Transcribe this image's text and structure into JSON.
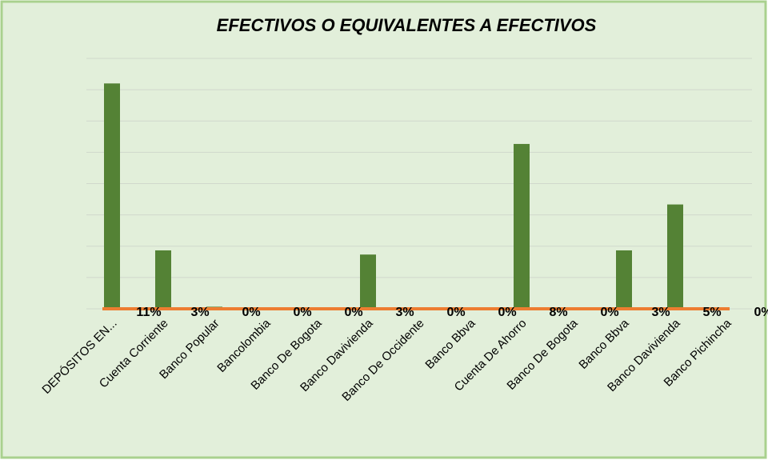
{
  "chart_data": {
    "type": "bar",
    "title": "EFECTIVOS O EQUIVALENTES A EFECTIVOS",
    "categories": [
      "DEPÓSITOS EN...",
      "Cuenta Corriente",
      "Banco Popular",
      "Bancolombia",
      "Banco De Bogota",
      "Banco Davivienda",
      "Banco De Occidente",
      "Banco Bbva",
      "Cuenta De Ahorro",
      "Banco De Bogota",
      "Banco Bbva",
      "Banco Davivienda",
      "Banco Pichincha"
    ],
    "values": [
      10.8,
      2.8,
      0.1,
      0,
      0,
      2.6,
      0,
      0,
      7.9,
      0,
      2.8,
      5.0,
      0
    ],
    "value_labels": [
      "11%",
      "3%",
      "0%",
      "0%",
      "0%",
      "3%",
      "0%",
      "0%",
      "8%",
      "0%",
      "3%",
      "5%",
      "0%"
    ],
    "color": "#548235",
    "ylim": [
      0,
      12
    ],
    "yticks": [
      0,
      1.5,
      3,
      4.5,
      6,
      7.5,
      9,
      10.5,
      12
    ],
    "grid": true
  }
}
